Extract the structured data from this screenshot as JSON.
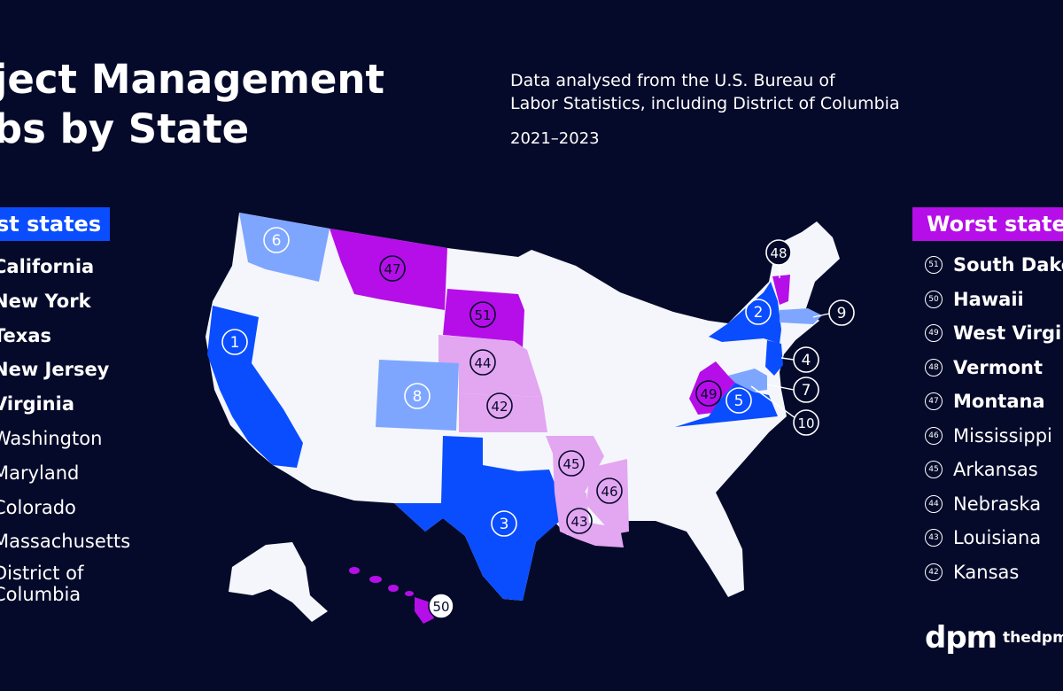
{
  "title": {
    "line1": "oject Management",
    "line2": "obs by State"
  },
  "subtitle": {
    "line1": "Data analysed from the U.S. Bureau of",
    "line2": "Labor Statistics, including District of Columbia"
  },
  "years": "2021–2023",
  "best": {
    "header": "st states",
    "items": [
      "California",
      "New York",
      "Texas",
      "New Jersey",
      "Virginia",
      "Washington",
      "Maryland",
      "Colorado",
      "Massachusetts"
    ],
    "last_line1": "District of",
    "last_line2": "Columbia"
  },
  "worst": {
    "header": "Worst state",
    "items": [
      {
        "rank": "51",
        "name": "South Dako"
      },
      {
        "rank": "50",
        "name": "Hawaii"
      },
      {
        "rank": "49",
        "name": "West Virgi"
      },
      {
        "rank": "48",
        "name": "Vermont"
      },
      {
        "rank": "47",
        "name": "Montana"
      },
      {
        "rank": "46",
        "name": "Mississippi"
      },
      {
        "rank": "45",
        "name": "Arkansas"
      },
      {
        "rank": "44",
        "name": "Nebraska"
      },
      {
        "rank": "43",
        "name": "Louisiana"
      },
      {
        "rank": "42",
        "name": "Kansas"
      }
    ]
  },
  "map": {
    "colors": {
      "top5": "#0a4dff",
      "top6_10": "#7ea6ff",
      "bottom5": "#b50ee8",
      "bottom6_10": "#e3a6f1",
      "other": "#f4f6fb"
    },
    "labels": [
      "1",
      "2",
      "3",
      "4",
      "5",
      "6",
      "7",
      "8",
      "9",
      "10",
      "42",
      "43",
      "44",
      "45",
      "46",
      "47",
      "48",
      "49",
      "50",
      "51"
    ]
  },
  "brand": {
    "logo": "dpm",
    "site": "thedpm"
  }
}
